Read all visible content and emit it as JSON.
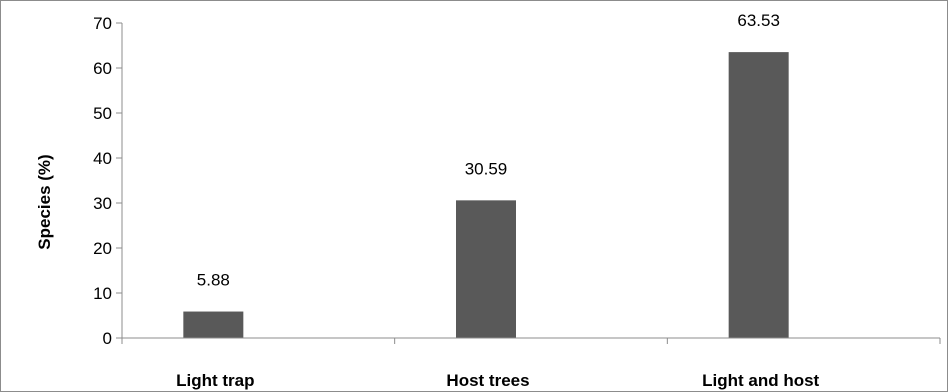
{
  "chart_data": {
    "type": "bar",
    "categories": [
      "Light trap",
      "Host trees",
      "Light and host"
    ],
    "values": [
      5.88,
      30.59,
      63.53
    ],
    "data_labels": [
      "5.88",
      "30.59",
      "63.53"
    ],
    "title": "",
    "xlabel": "",
    "ylabel": "Species (%)",
    "ylim": [
      0,
      70
    ],
    "yticks": [
      0,
      10,
      20,
      30,
      40,
      50,
      60,
      70
    ],
    "grid": false,
    "bar_color": "#595959"
  }
}
